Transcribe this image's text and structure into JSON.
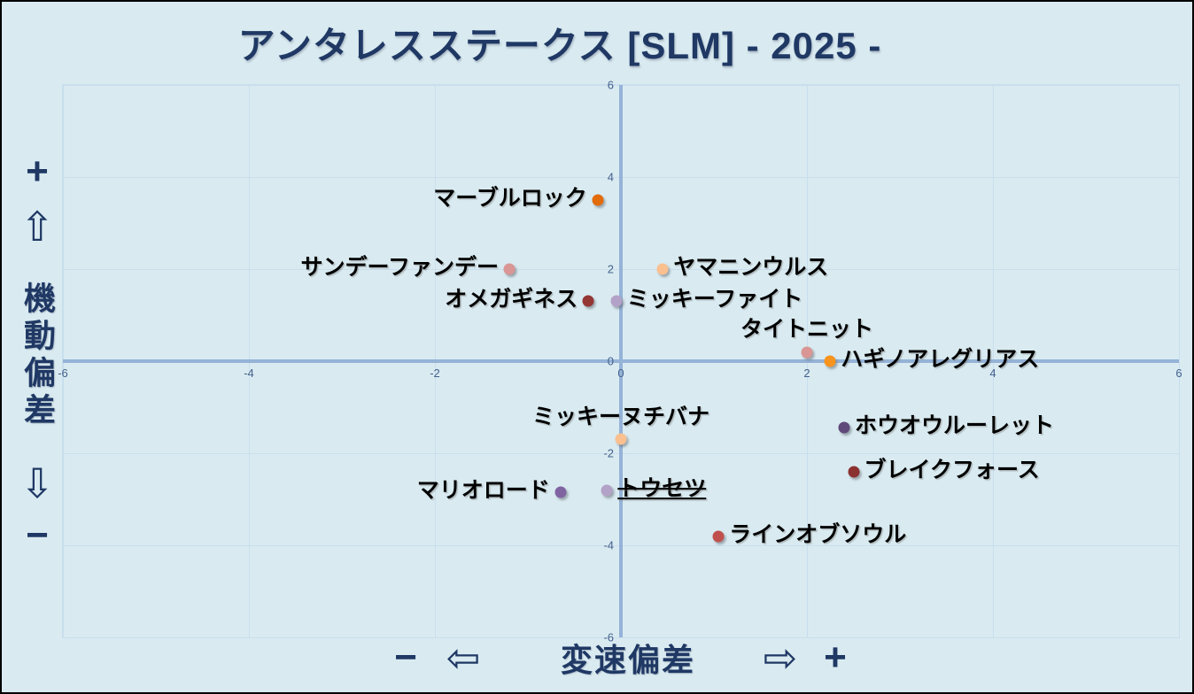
{
  "title": "アンタレスステークス [SLM]  - 2025 -",
  "axis_annotations": {
    "y_plus": "+",
    "y_up_arrow": "⇧",
    "y_label": "機動偏差",
    "y_down_arrow": "⇩",
    "y_minus": "−",
    "x_minus": "−",
    "x_left_arrow": "⇦",
    "x_label": "変速偏差",
    "x_right_arrow": "⇨",
    "x_plus": "+"
  },
  "colors": {
    "background": "#D9EBF1",
    "title_navy": "#1F3864",
    "axis_line": "#95B3D7",
    "gridline": "#C9DEED",
    "tick_label": "#44618C",
    "point_label": "#000000"
  },
  "chart_data": {
    "type": "scatter",
    "title": "アンタレスステークス [SLM]  - 2025 -",
    "xlabel": "変速偏差",
    "ylabel": "機動偏差",
    "xlim": [
      -6,
      6
    ],
    "ylim": [
      -6,
      6
    ],
    "grid_step": 2,
    "x_ticks": [
      -6,
      -4,
      -2,
      0,
      2,
      4,
      6
    ],
    "y_ticks": [
      -6,
      -4,
      -2,
      0,
      2,
      4,
      6
    ],
    "grid": true,
    "legend": false,
    "points": [
      {
        "name": "マーブルロック",
        "x": -0.25,
        "y": 3.5,
        "color": "#E26B0A",
        "label_pos": "left"
      },
      {
        "name": "サンデーファンデー",
        "x": -1.2,
        "y": 2.0,
        "color": "#D99694",
        "label_pos": "left"
      },
      {
        "name": "ヤマニンウルス",
        "x": 0.45,
        "y": 2.0,
        "color": "#FAC090",
        "label_pos": "right"
      },
      {
        "name": "オメガギネス",
        "x": -0.35,
        "y": 1.3,
        "color": "#943634",
        "label_pos": "left"
      },
      {
        "name": "ミッキーファイト",
        "x": -0.05,
        "y": 1.3,
        "color": "#B3A2C7",
        "label_pos": "right"
      },
      {
        "name": "タイトニット",
        "x": 2.0,
        "y": 0.2,
        "color": "#D99694",
        "label_pos": "above"
      },
      {
        "name": "ハギノアレグリアス",
        "x": 2.25,
        "y": 0.0,
        "color": "#F7941E",
        "label_pos": "right"
      },
      {
        "name": "ミッキーヌチバナ",
        "x": 0.0,
        "y": -1.7,
        "color": "#FAC090",
        "label_pos": "above"
      },
      {
        "name": "ホウオウルーレット",
        "x": 2.4,
        "y": -1.45,
        "color": "#5F497A",
        "label_pos": "right"
      },
      {
        "name": "ブレイクフォース",
        "x": 2.5,
        "y": -2.4,
        "color": "#8B3130",
        "label_pos": "right"
      },
      {
        "name": "マリオロード",
        "x": -0.65,
        "y": -2.85,
        "color": "#8064A2",
        "label_pos": "left"
      },
      {
        "name": "トウセツ",
        "x": -0.15,
        "y": -2.8,
        "color": "#B3A2C7",
        "label_pos": "right",
        "strikethrough": true
      },
      {
        "name": "ラインオブソウル",
        "x": 1.05,
        "y": -3.8,
        "color": "#C0504D",
        "label_pos": "right"
      }
    ]
  }
}
